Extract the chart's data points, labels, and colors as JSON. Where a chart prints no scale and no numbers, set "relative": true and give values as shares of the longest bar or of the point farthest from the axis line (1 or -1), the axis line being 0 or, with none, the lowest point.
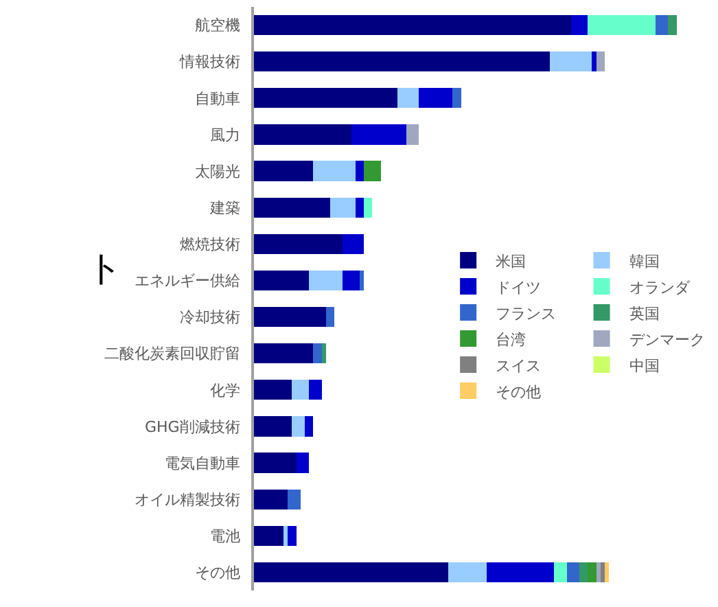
{
  "chart_data": {
    "type": "bar",
    "orientation": "horizontal",
    "stacked": true,
    "relative": true,
    "legend": "right",
    "categories": [
      "航空機",
      "情報技術",
      "自動車",
      "風力",
      "太陽光",
      "建築",
      "燃焼技術",
      "エネルギー供給",
      "冷却技術",
      "二酸化炭素回収貯留",
      "化学",
      "GHG削減技術",
      "電気自動車",
      "オイル精製技術",
      "電池",
      "その他"
    ],
    "series": [
      {
        "name": "米国",
        "color": "#000080",
        "values": [
          0.75,
          0.7,
          0.34,
          0.23,
          0.14,
          0.18,
          0.21,
          0.13,
          0.17,
          0.14,
          0.09,
          0.09,
          0.1,
          0.08,
          0.07,
          0.46
        ]
      },
      {
        "name": "韓国",
        "color": "#99ccff",
        "values": [
          null,
          0.1,
          0.05,
          null,
          0.1,
          0.06,
          null,
          0.08,
          null,
          null,
          0.04,
          0.03,
          null,
          null,
          0.01,
          0.09
        ]
      },
      {
        "name": "ドイツ",
        "color": "#0000cc",
        "values": [
          0.04,
          0.01,
          0.08,
          0.13,
          0.02,
          0.02,
          0.05,
          0.04,
          null,
          null,
          0.03,
          0.02,
          0.03,
          null,
          0.02,
          0.16
        ]
      },
      {
        "name": "オランダ",
        "color": "#66ffcc",
        "values": [
          0.16,
          null,
          null,
          null,
          null,
          0.02,
          null,
          null,
          null,
          null,
          null,
          null,
          null,
          null,
          null,
          0.03
        ]
      },
      {
        "name": "フランス",
        "color": "#3366cc",
        "values": [
          0.03,
          null,
          0.02,
          null,
          null,
          null,
          null,
          0.01,
          0.02,
          0.02,
          null,
          null,
          null,
          0.03,
          null,
          0.03
        ]
      },
      {
        "name": "英国",
        "color": "#339966",
        "values": [
          0.02,
          null,
          null,
          null,
          null,
          null,
          null,
          null,
          null,
          0.01,
          null,
          null,
          null,
          null,
          null,
          0.02
        ]
      },
      {
        "name": "台湾",
        "color": "#339933",
        "values": [
          null,
          null,
          null,
          null,
          0.04,
          null,
          null,
          null,
          null,
          null,
          null,
          null,
          null,
          null,
          null,
          0.02
        ]
      },
      {
        "name": "デンマーク",
        "color": "#a0a8c0",
        "values": [
          null,
          0.02,
          null,
          0.03,
          null,
          null,
          null,
          null,
          null,
          null,
          null,
          null,
          null,
          null,
          null,
          0.01
        ]
      },
      {
        "name": "スイス",
        "color": "#808080",
        "values": [
          null,
          null,
          null,
          null,
          null,
          null,
          null,
          null,
          null,
          null,
          null,
          null,
          null,
          null,
          null,
          0.01
        ]
      },
      {
        "name": "中国",
        "color": "#ccff66",
        "values": [
          null,
          null,
          null,
          null,
          null,
          null,
          null,
          null,
          null,
          null,
          null,
          null,
          null,
          null,
          null,
          null
        ]
      },
      {
        "name": "その他",
        "color": "#ffcc66",
        "values": [
          null,
          null,
          null,
          null,
          null,
          null,
          null,
          null,
          null,
          null,
          null,
          null,
          null,
          null,
          null,
          0.01
        ]
      }
    ],
    "annotations": [
      "ト"
    ]
  }
}
